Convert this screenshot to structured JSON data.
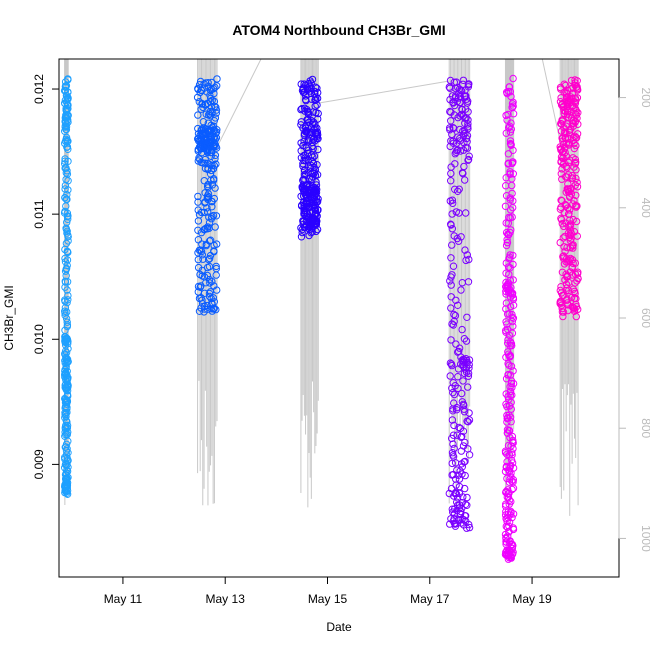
{
  "chart_data": {
    "type": "scatter",
    "title": "ATOM4 Northbound CH3Br_GMI",
    "xlabel": "Date",
    "ylabel": "CH3Br_GMI",
    "x_ticks": [
      {
        "label": "May 11",
        "day": 11
      },
      {
        "label": "May 13",
        "day": 13
      },
      {
        "label": "May 15",
        "day": 15
      },
      {
        "label": "May 17",
        "day": 17
      },
      {
        "label": "May 19",
        "day": 19
      }
    ],
    "y_ticks": [
      {
        "label": "0.009",
        "value": 0.009
      },
      {
        "label": "0.010",
        "value": 0.01
      },
      {
        "label": "0.011",
        "value": 0.011
      },
      {
        "label": "0.012",
        "value": 0.012
      }
    ],
    "y2_ticks": [
      {
        "label": "200",
        "value": 200
      },
      {
        "label": "400",
        "value": 400
      },
      {
        "label": "600",
        "value": 600
      },
      {
        "label": "800",
        "value": 800
      },
      {
        "label": "1000",
        "value": 1000
      }
    ],
    "xlim_days": [
      9.75,
      20.7
    ],
    "ylim": [
      0.0081,
      0.01224
    ],
    "y2lim": [
      1070,
      130
    ],
    "grid": false,
    "series": [
      {
        "color": "#1ea0ff",
        "x_start": 9.86,
        "x_end": 9.93,
        "values": [
          0.01205,
          0.01195,
          0.0118,
          0.0117,
          0.0115,
          0.0112,
          0.0109,
          0.0106,
          0.0103,
          0.01,
          0.00995,
          0.0098,
          0.0097,
          0.0096,
          0.0095,
          0.0094,
          0.0092,
          0.009,
          0.0089,
          0.0088
        ]
      },
      {
        "color": "#0a5cff",
        "x_start": 12.46,
        "x_end": 12.84,
        "values": [
          0.01205,
          0.012,
          0.0119,
          0.0118,
          0.0117,
          0.0116,
          0.0115,
          0.0112,
          0.011,
          0.0108,
          0.0106,
          0.0104,
          0.0102,
          0.01035,
          0.011,
          0.0114,
          0.0115,
          0.01155,
          0.0116,
          0.01165
        ]
      },
      {
        "color": "#2a00ff",
        "x_start": 14.48,
        "x_end": 14.82,
        "values": [
          0.01205,
          0.012,
          0.0119,
          0.0118,
          0.0117,
          0.01165,
          0.0116,
          0.0115,
          0.0114,
          0.0113,
          0.0112,
          0.01115,
          0.0111,
          0.01105,
          0.011,
          0.01095,
          0.0109,
          0.01085,
          0.011,
          0.0112
        ]
      },
      {
        "color": "#7a00ff",
        "x_start": 17.38,
        "x_end": 17.78,
        "values": [
          0.01205,
          0.012,
          0.0119,
          0.0118,
          0.0117,
          0.0116,
          0.0115,
          0.0112,
          0.0108,
          0.0104,
          0.01,
          0.0097,
          0.0094,
          0.0091,
          0.0088,
          0.0086,
          0.0085,
          0.0087,
          0.0092,
          0.0098
        ]
      },
      {
        "color": "#ee00ff",
        "x_start": 18.48,
        "x_end": 18.64,
        "values": [
          0.01205,
          0.0118,
          0.0115,
          0.0112,
          0.0109,
          0.0106,
          0.0103,
          0.01,
          0.0097,
          0.0094,
          0.0091,
          0.0089,
          0.0087,
          0.0085,
          0.0083,
          0.00825,
          0.0084,
          0.009,
          0.0097,
          0.0104
        ]
      },
      {
        "color": "#ff00cc",
        "x_start": 19.55,
        "x_end": 19.9,
        "values": [
          0.01205,
          0.012,
          0.0119,
          0.0118,
          0.0117,
          0.0116,
          0.0115,
          0.0113,
          0.0111,
          0.0109,
          0.0107,
          0.0105,
          0.0103,
          0.0102,
          0.0104,
          0.0107,
          0.011,
          0.0113,
          0.0116,
          0.0119
        ]
      }
    ]
  }
}
